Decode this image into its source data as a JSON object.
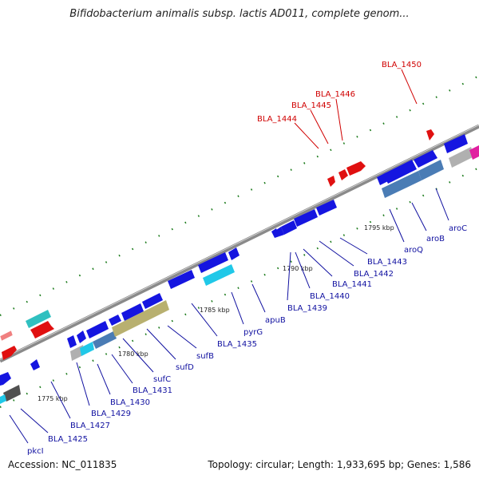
{
  "header": {
    "title": "Bifidobacterium animalis subsp. lactis AD011, complete genom..."
  },
  "footer": {
    "accession": "Accession: NC_011835",
    "summary": "Topology: circular; Length: 1,933,695 bp; Genes: 1,586"
  },
  "colors": {
    "backbone": "#8a8a8a",
    "gene_blue": "#1515e0",
    "gene_steel": "#4a7cb5",
    "gene_cyan": "#20c8e8",
    "gene_teal": "#30c0c0",
    "gene_olive": "#b8b070",
    "gene_red": "#e01010",
    "gene_pink": "#f08080",
    "gene_gray": "#b0b0b0",
    "gene_dark": "#505050",
    "gene_magenta": "#e020a0",
    "label_forward": "#d00000",
    "label_reverse": "#1010a0",
    "tick_mark": "#1a7a1a"
  },
  "scale": {
    "ticks": [
      {
        "label": "1775 kbp"
      },
      {
        "label": "1780 kbp"
      },
      {
        "label": "1785 kbp"
      },
      {
        "label": "1790 kbp"
      },
      {
        "label": "1795 kbp"
      }
    ]
  },
  "labels": {
    "forward": [
      "BLA_1444",
      "BLA_1445",
      "BLA_1446",
      "BLA_1450"
    ],
    "reverse": [
      "pkcI",
      "BLA_1425",
      "BLA_1427",
      "BLA_1429",
      "BLA_1430",
      "BLA_1431",
      "sufC",
      "sufD",
      "sufB",
      "BLA_1435",
      "pyrG",
      "apuB",
      "BLA_1439",
      "BLA_1440",
      "BLA_1441",
      "BLA_1442",
      "BLA_1443",
      "aroQ",
      "aroB",
      "aroC"
    ]
  }
}
